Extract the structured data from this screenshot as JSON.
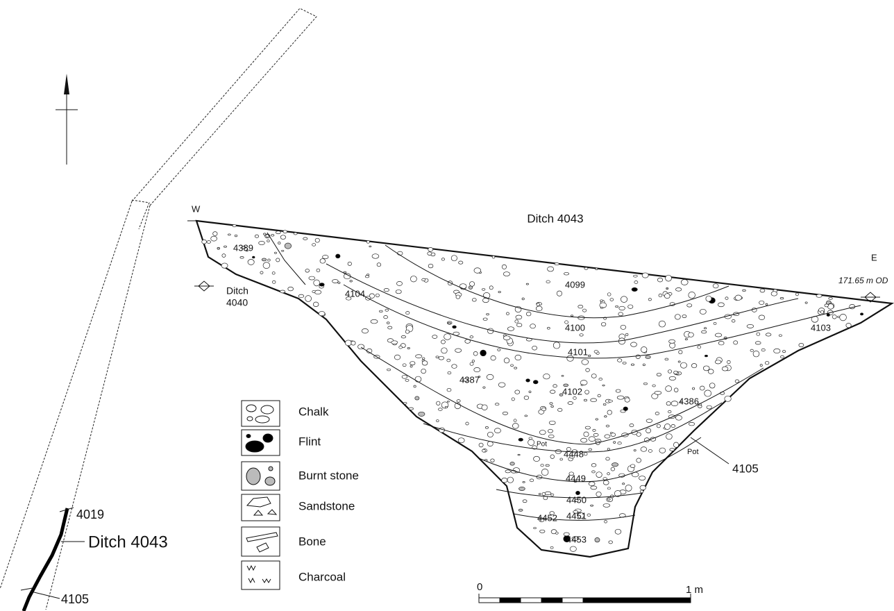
{
  "plan": {
    "labels": [
      "4019",
      "Ditch 4043",
      "4105"
    ]
  },
  "section": {
    "title": "Ditch 4043",
    "west": "W",
    "east": "E",
    "datum": "171.65 m OD",
    "ditch_4040": [
      "Ditch",
      "4040"
    ],
    "contexts": [
      "4389",
      "4104",
      "4099",
      "4100",
      "4101",
      "4387",
      "4102",
      "4386",
      "4103",
      "4448",
      "4449",
      "4450",
      "4451",
      "4452",
      "4453"
    ],
    "pot_labels": [
      "Pot",
      "Pot"
    ],
    "cut_label": "4105"
  },
  "legend": {
    "items": [
      "Chalk",
      "Flint",
      "Burnt stone",
      "Sandstone",
      "Bone",
      "Charcoal"
    ]
  },
  "scale": {
    "start": "0",
    "end": "1 m"
  }
}
